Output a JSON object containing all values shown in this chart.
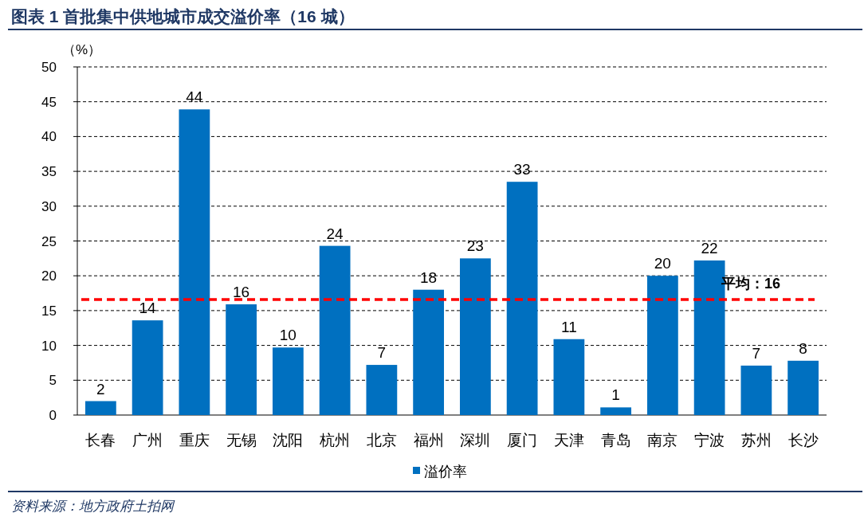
{
  "chart_data": {
    "type": "bar",
    "title": "图表 1  首批集中供地城市成交溢价率（16 城）",
    "ylabel": "（%）",
    "categories": [
      "长春",
      "广州",
      "重庆",
      "无锡",
      "沈阳",
      "杭州",
      "北京",
      "福州",
      "深圳",
      "厦门",
      "天津",
      "青岛",
      "南京",
      "宁波",
      "苏州",
      "长沙"
    ],
    "series": [
      {
        "name": "溢价率",
        "color": "#0070c0",
        "values": [
          2.0,
          13.6,
          43.9,
          15.9,
          9.7,
          24.3,
          7.2,
          18.0,
          22.5,
          33.5,
          10.9,
          1.1,
          20.0,
          22.2,
          7.1,
          7.8
        ],
        "value_labels": [
          "2",
          "14",
          "44",
          "16",
          "10",
          "24",
          "7",
          "18",
          "23",
          "33",
          "11",
          "1",
          "20",
          "22",
          "7",
          "8"
        ]
      }
    ],
    "ylim": [
      0,
      50
    ],
    "yticks": [
      0,
      5,
      10,
      15,
      20,
      25,
      30,
      35,
      40,
      45,
      50
    ],
    "grid": "y",
    "legend": "bottom",
    "ref_lines": [
      {
        "axis": "y",
        "value": 16.6,
        "label": "平均：16",
        "color": "#ff0000",
        "line_style": "dashed"
      }
    ],
    "annotations": [
      "资料来源：地方政府土拍网"
    ]
  }
}
